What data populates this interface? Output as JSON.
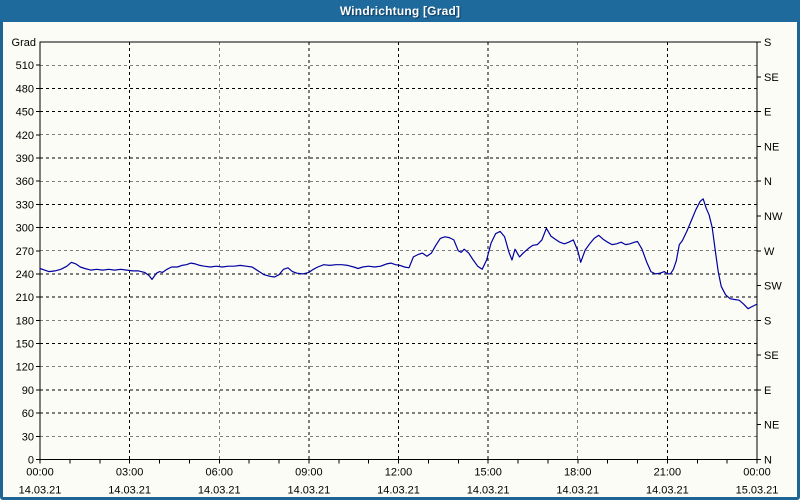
{
  "window": {
    "title": "Windrichtung [Grad]"
  },
  "colors": {
    "titlebar_bg": "#1f6a9c",
    "frame_border": "#1e6495",
    "plot_bg": "#fcfcf7",
    "grid": "#000000",
    "axis": "#000000",
    "series_line": "#0000a0",
    "title_text": "#ffffff"
  },
  "chart_data": {
    "type": "line",
    "title": "Windrichtung [Grad]",
    "xlabel": "",
    "ylabel": "Grad",
    "grid": "dashed",
    "legend_position": "none",
    "x_axis": {
      "unit": "hours",
      "range_hours": [
        0,
        24
      ],
      "major_tick_hours": 3,
      "minor_tick_hours": 1,
      "major_tick_labels": [
        {
          "time": "00:00",
          "date": "14.03.21"
        },
        {
          "time": "03:00",
          "date": "14.03.21"
        },
        {
          "time": "06:00",
          "date": "14.03.21"
        },
        {
          "time": "09:00",
          "date": "14.03.21"
        },
        {
          "time": "12:00",
          "date": "14.03.21"
        },
        {
          "time": "15:00",
          "date": "14.03.21"
        },
        {
          "time": "18:00",
          "date": "14.03.21"
        },
        {
          "time": "21:00",
          "date": "14.03.21"
        },
        {
          "time": "00:00",
          "date": "15.03.21"
        }
      ]
    },
    "y_axis_left": {
      "label": "Grad",
      "range": [
        0,
        540
      ],
      "tick_step": 30,
      "tick_values": [
        0,
        30,
        60,
        90,
        120,
        150,
        180,
        210,
        240,
        270,
        300,
        330,
        360,
        390,
        420,
        450,
        480,
        510
      ]
    },
    "y_axis_right": {
      "tick_step_degrees": 45,
      "labels_bottom_to_top": [
        "N",
        "NE",
        "E",
        "SE",
        "S",
        "SW",
        "W",
        "NW",
        "N",
        "NE",
        "E",
        "SE",
        "S"
      ]
    },
    "series": [
      {
        "name": "Windrichtung",
        "color": "#0000a0",
        "points": [
          [
            0.0,
            247
          ],
          [
            0.15,
            245
          ],
          [
            0.3,
            243
          ],
          [
            0.5,
            244
          ],
          [
            0.7,
            246
          ],
          [
            0.9,
            250
          ],
          [
            1.05,
            255
          ],
          [
            1.2,
            253
          ],
          [
            1.35,
            249
          ],
          [
            1.5,
            247
          ],
          [
            1.7,
            245
          ],
          [
            1.9,
            246
          ],
          [
            2.1,
            245
          ],
          [
            2.3,
            246
          ],
          [
            2.5,
            245
          ],
          [
            2.7,
            246
          ],
          [
            2.9,
            245
          ],
          [
            3.1,
            244
          ],
          [
            3.3,
            244
          ],
          [
            3.5,
            242
          ],
          [
            3.65,
            238
          ],
          [
            3.75,
            233
          ],
          [
            3.9,
            241
          ],
          [
            4.0,
            243
          ],
          [
            4.1,
            242
          ],
          [
            4.25,
            246
          ],
          [
            4.4,
            249
          ],
          [
            4.6,
            249
          ],
          [
            4.75,
            251
          ],
          [
            4.9,
            252
          ],
          [
            5.05,
            254
          ],
          [
            5.2,
            253
          ],
          [
            5.35,
            251
          ],
          [
            5.5,
            250
          ],
          [
            5.7,
            249
          ],
          [
            5.9,
            250
          ],
          [
            6.1,
            249
          ],
          [
            6.3,
            250
          ],
          [
            6.5,
            250
          ],
          [
            6.7,
            251
          ],
          [
            6.9,
            250
          ],
          [
            7.1,
            249
          ],
          [
            7.3,
            244
          ],
          [
            7.5,
            239
          ],
          [
            7.7,
            237
          ],
          [
            7.85,
            236
          ],
          [
            8.0,
            239
          ],
          [
            8.15,
            246
          ],
          [
            8.3,
            248
          ],
          [
            8.45,
            243
          ],
          [
            8.6,
            241
          ],
          [
            8.8,
            240
          ],
          [
            9.0,
            242
          ],
          [
            9.15,
            246
          ],
          [
            9.3,
            249
          ],
          [
            9.5,
            252
          ],
          [
            9.7,
            251
          ],
          [
            9.9,
            252
          ],
          [
            10.1,
            252
          ],
          [
            10.3,
            251
          ],
          [
            10.5,
            249
          ],
          [
            10.65,
            247
          ],
          [
            10.8,
            249
          ],
          [
            11.0,
            250
          ],
          [
            11.2,
            249
          ],
          [
            11.4,
            250
          ],
          [
            11.6,
            253
          ],
          [
            11.75,
            254
          ],
          [
            11.9,
            252
          ],
          [
            12.05,
            251
          ],
          [
            12.2,
            249
          ],
          [
            12.35,
            248
          ],
          [
            12.5,
            262
          ],
          [
            12.65,
            265
          ],
          [
            12.8,
            267
          ],
          [
            12.95,
            263
          ],
          [
            13.1,
            267
          ],
          [
            13.25,
            277
          ],
          [
            13.4,
            286
          ],
          [
            13.55,
            288
          ],
          [
            13.7,
            287
          ],
          [
            13.85,
            284
          ],
          [
            14.0,
            270
          ],
          [
            14.1,
            268
          ],
          [
            14.2,
            272
          ],
          [
            14.35,
            267
          ],
          [
            14.5,
            258
          ],
          [
            14.65,
            250
          ],
          [
            14.8,
            246
          ],
          [
            14.95,
            258
          ],
          [
            15.1,
            280
          ],
          [
            15.25,
            292
          ],
          [
            15.4,
            295
          ],
          [
            15.55,
            288
          ],
          [
            15.7,
            268
          ],
          [
            15.8,
            258
          ],
          [
            15.9,
            272
          ],
          [
            16.05,
            262
          ],
          [
            16.2,
            268
          ],
          [
            16.35,
            273
          ],
          [
            16.5,
            277
          ],
          [
            16.65,
            278
          ],
          [
            16.8,
            284
          ],
          [
            16.95,
            299
          ],
          [
            17.1,
            289
          ],
          [
            17.25,
            285
          ],
          [
            17.4,
            281
          ],
          [
            17.55,
            279
          ],
          [
            17.7,
            281
          ],
          [
            17.85,
            284
          ],
          [
            18.0,
            270
          ],
          [
            18.1,
            255
          ],
          [
            18.25,
            271
          ],
          [
            18.4,
            279
          ],
          [
            18.55,
            286
          ],
          [
            18.7,
            290
          ],
          [
            18.85,
            285
          ],
          [
            19.0,
            281
          ],
          [
            19.15,
            278
          ],
          [
            19.3,
            279
          ],
          [
            19.45,
            281
          ],
          [
            19.6,
            278
          ],
          [
            19.75,
            279
          ],
          [
            19.9,
            281
          ],
          [
            20.0,
            282
          ],
          [
            20.15,
            272
          ],
          [
            20.3,
            256
          ],
          [
            20.45,
            243
          ],
          [
            20.6,
            240
          ],
          [
            20.75,
            241
          ],
          [
            20.9,
            243
          ],
          [
            21.0,
            240
          ],
          [
            21.1,
            240
          ],
          [
            21.2,
            246
          ],
          [
            21.3,
            257
          ],
          [
            21.4,
            278
          ],
          [
            21.5,
            283
          ],
          [
            21.65,
            295
          ],
          [
            21.8,
            309
          ],
          [
            21.95,
            323
          ],
          [
            22.1,
            334
          ],
          [
            22.2,
            337
          ],
          [
            22.3,
            325
          ],
          [
            22.4,
            316
          ],
          [
            22.5,
            300
          ],
          [
            22.6,
            271
          ],
          [
            22.7,
            243
          ],
          [
            22.8,
            224
          ],
          [
            22.95,
            213
          ],
          [
            23.1,
            208
          ],
          [
            23.25,
            207
          ],
          [
            23.4,
            206
          ],
          [
            23.55,
            201
          ],
          [
            23.7,
            195
          ],
          [
            23.85,
            198
          ],
          [
            24.0,
            201
          ]
        ]
      }
    ]
  }
}
